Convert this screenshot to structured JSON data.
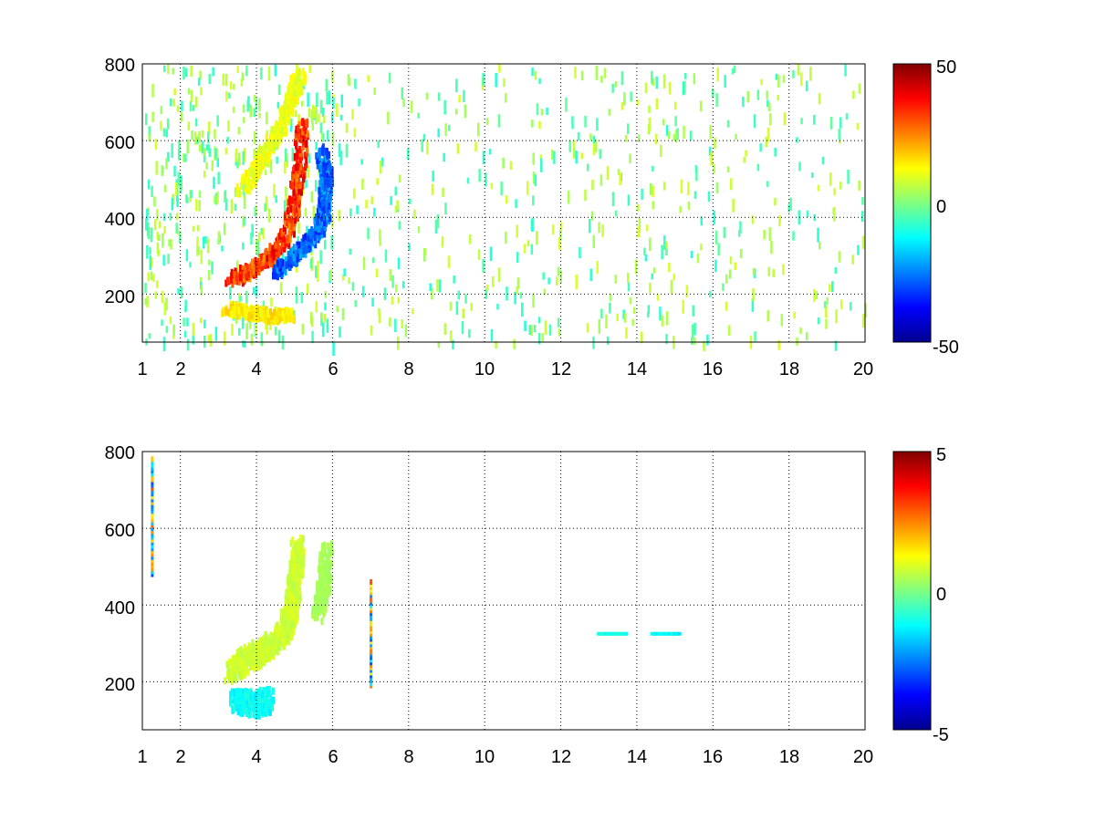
{
  "chart_data": [
    {
      "type": "heatmap",
      "title": "",
      "xlabel": "",
      "ylabel": "",
      "xlim": [
        1,
        20
      ],
      "ylim": [
        75,
        800
      ],
      "x_ticks": [
        1,
        2,
        4,
        6,
        8,
        10,
        12,
        14,
        16,
        18,
        20
      ],
      "x_tick_labels": [
        "1",
        "2",
        "4",
        "6",
        "8",
        "10",
        "12",
        "14",
        "16",
        "18",
        "20"
      ],
      "y_ticks": [
        200,
        400,
        600,
        800
      ],
      "y_tick_labels": [
        "200",
        "400",
        "600",
        "800"
      ],
      "grid": true,
      "grid_style": "dotted",
      "colormap": "jet",
      "clim": [
        -50,
        50
      ],
      "colorbar_labels": [
        "50",
        "0",
        "-50"
      ],
      "colorbar_ticks": [
        50,
        0,
        -50
      ],
      "colorbar_placement": "right",
      "features": [
        {
          "kind": "ridge",
          "value": 42,
          "points": [
            [
              3.3,
              245
            ],
            [
              3.8,
              270
            ],
            [
              4.3,
              300
            ],
            [
              4.7,
              350
            ],
            [
              4.95,
              430
            ],
            [
              5.1,
              540
            ],
            [
              5.2,
              660
            ]
          ]
        },
        {
          "kind": "ridge",
          "value": -35,
          "points": [
            [
              4.5,
              265
            ],
            [
              5.0,
              310
            ],
            [
              5.5,
              360
            ],
            [
              5.75,
              420
            ],
            [
              5.8,
              510
            ],
            [
              5.7,
              580
            ]
          ]
        },
        {
          "kind": "ridge",
          "value": 18,
          "points": [
            [
              3.2,
              170
            ],
            [
              3.8,
              160
            ],
            [
              4.4,
              150
            ],
            [
              4.9,
              155
            ]
          ]
        },
        {
          "kind": "ridge",
          "value": 14,
          "points": [
            [
              3.6,
              480
            ],
            [
              4.1,
              560
            ],
            [
              4.6,
              640
            ],
            [
              4.9,
              720
            ],
            [
              5.1,
              780
            ]
          ]
        }
      ]
    },
    {
      "type": "heatmap",
      "title": "",
      "xlabel": "",
      "ylabel": "",
      "xlim": [
        1,
        20
      ],
      "ylim": [
        75,
        800
      ],
      "x_ticks": [
        1,
        2,
        4,
        6,
        8,
        10,
        12,
        14,
        16,
        18,
        20
      ],
      "x_tick_labels": [
        "1",
        "2",
        "4",
        "6",
        "8",
        "10",
        "12",
        "14",
        "16",
        "18",
        "20"
      ],
      "y_ticks": [
        200,
        400,
        600,
        800
      ],
      "y_tick_labels": [
        "200",
        "400",
        "600",
        "800"
      ],
      "grid": true,
      "grid_style": "dotted",
      "colormap": "jet",
      "clim": [
        -5,
        5
      ],
      "colorbar_labels": [
        "5",
        "0",
        "-5"
      ],
      "colorbar_ticks": [
        5,
        0,
        -5
      ],
      "colorbar_placement": "right",
      "features": [
        {
          "kind": "blob",
          "value": 1.0,
          "points": [
            [
              3.3,
              240
            ],
            [
              3.8,
              270
            ],
            [
              4.3,
              300
            ],
            [
              4.7,
              340
            ],
            [
              4.9,
              400
            ],
            [
              5.0,
              480
            ],
            [
              5.05,
              560
            ]
          ]
        },
        {
          "kind": "blob",
          "value": -1.5,
          "points": [
            [
              3.4,
              160
            ],
            [
              3.9,
              150
            ],
            [
              4.3,
              160
            ]
          ]
        },
        {
          "kind": "ridge",
          "value": 0.5,
          "points": [
            [
              5.6,
              380
            ],
            [
              5.75,
              460
            ],
            [
              5.8,
              560
            ]
          ]
        },
        {
          "kind": "column",
          "value": 3,
          "points": [
            [
              7.0,
              190
            ],
            [
              7.0,
              460
            ]
          ]
        },
        {
          "kind": "column",
          "value": -3,
          "points": [
            [
              1.25,
              480
            ],
            [
              1.25,
              780
            ]
          ]
        },
        {
          "kind": "dash",
          "value": -1.2,
          "points": [
            [
              13.0,
              325
            ],
            [
              13.7,
              325
            ]
          ]
        },
        {
          "kind": "dash",
          "value": -1.5,
          "points": [
            [
              14.4,
              325
            ],
            [
              15.1,
              325
            ]
          ]
        }
      ]
    }
  ]
}
